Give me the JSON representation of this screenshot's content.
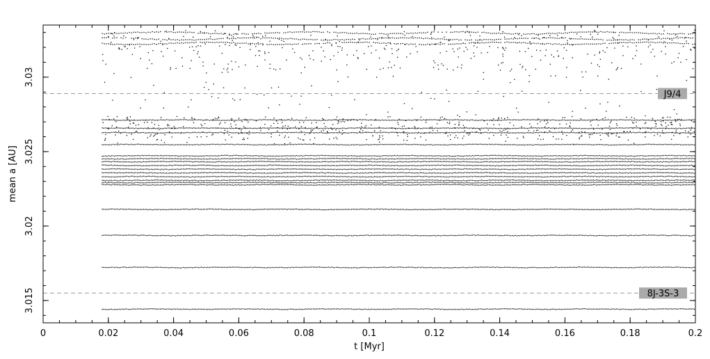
{
  "chart_data": {
    "type": "scatter",
    "xlabel": "t [Myr]",
    "ylabel": "mean a [AU]",
    "xlim": [
      0,
      0.2
    ],
    "ylim": [
      3.0135,
      3.0335
    ],
    "x_ticks": [
      "0",
      "0.02",
      "0.04",
      "0.06",
      "0.08",
      "0.1",
      "0.12",
      "0.14",
      "0.16",
      "0.18",
      "0.2"
    ],
    "x_tick_values": [
      0,
      0.02,
      0.04,
      0.06,
      0.08,
      0.1,
      0.12,
      0.14,
      0.16,
      0.18,
      0.2
    ],
    "y_ticks": [
      "3.015",
      "3.02",
      "3.025",
      "3.03"
    ],
    "y_tick_values": [
      3.015,
      3.02,
      3.025,
      3.03
    ],
    "grid": false,
    "resonances": [
      {
        "label": "J9/4",
        "a": 3.0289
      },
      {
        "label": "8J-3S-3",
        "a": 3.0155
      }
    ],
    "stable_tracks_a": [
      3.01445,
      3.01725,
      3.0194,
      3.02115,
      3.0228,
      3.02295,
      3.0231,
      3.02335,
      3.0236,
      3.02385,
      3.0241,
      3.02435,
      3.02455,
      3.02475,
      3.0255,
      3.0263,
      3.0266,
      3.02715
    ],
    "chaotic_band_a": [
      3.0255,
      3.0332
    ],
    "t_start": 0.018,
    "t_end": 0.2
  }
}
